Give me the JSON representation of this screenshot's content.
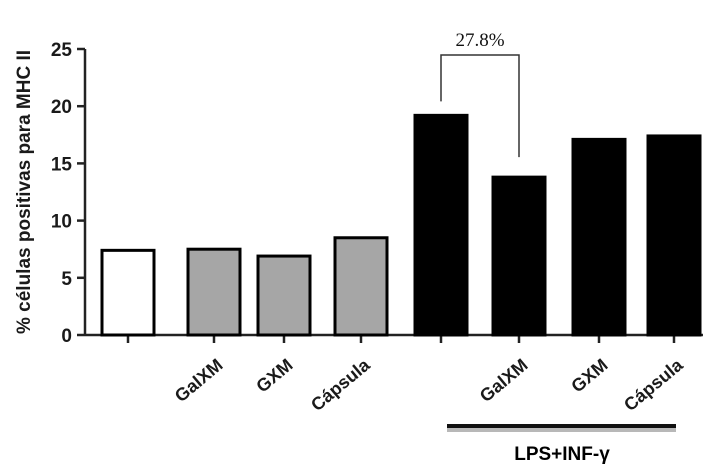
{
  "chart_data": {
    "type": "bar",
    "ylabel": "% células positivas para MHC II",
    "ylim": [
      0,
      25
    ],
    "yticks": [
      0,
      5,
      10,
      15,
      20,
      25
    ],
    "grid": false,
    "bars": [
      {
        "label": "",
        "value": 7.4,
        "fill": "#ffffff",
        "group": "control"
      },
      {
        "label": "GalXM",
        "value": 7.5,
        "fill": "#a6a6a6",
        "group": "control"
      },
      {
        "label": "GXM",
        "value": 6.9,
        "fill": "#a6a6a6",
        "group": "control"
      },
      {
        "label": "Cápsula",
        "value": 8.5,
        "fill": "#a6a6a6",
        "group": "control"
      },
      {
        "label": "",
        "value": 19.2,
        "fill": "#000000",
        "group": "lps"
      },
      {
        "label": "GalXM",
        "value": 13.8,
        "fill": "#000000",
        "group": "lps"
      },
      {
        "label": "GXM",
        "value": 17.1,
        "fill": "#000000",
        "group": "lps"
      },
      {
        "label": "Cápsula",
        "value": 17.4,
        "fill": "#000000",
        "group": "lps"
      }
    ],
    "group_label": "LPS+INF-γ",
    "annotation": {
      "text": "27.8%",
      "from_bar": 4,
      "to_bar": 5
    }
  }
}
